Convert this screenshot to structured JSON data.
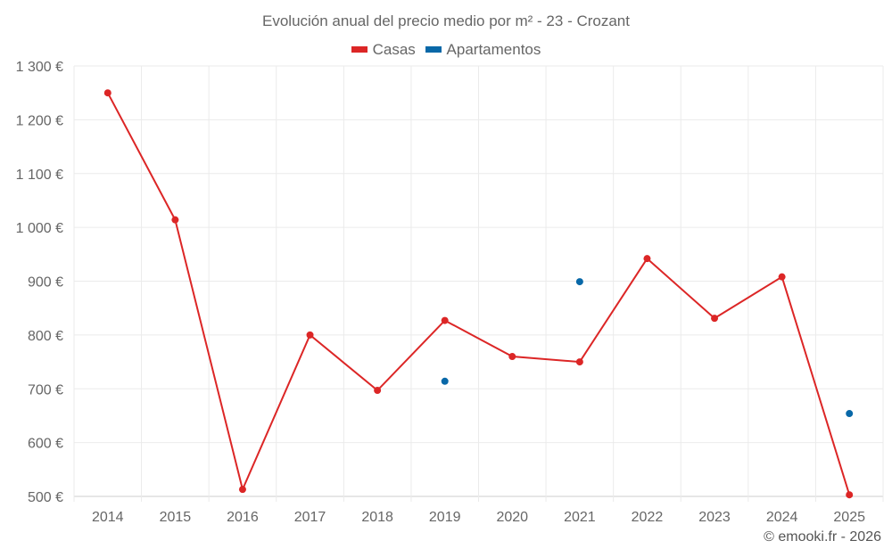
{
  "chart_data": {
    "type": "line",
    "title": "Evolución anual del precio medio por m² - 23 - Crozant",
    "categories": [
      "2014",
      "2015",
      "2016",
      "2017",
      "2018",
      "2019",
      "2020",
      "2021",
      "2022",
      "2023",
      "2024",
      "2025"
    ],
    "series": [
      {
        "name": "Casas",
        "color": "#dc2626",
        "values": [
          1250,
          1014,
          513,
          800,
          697,
          827,
          760,
          750,
          942,
          831,
          908,
          503
        ]
      },
      {
        "name": "Apartamentos",
        "color": "#0868a8",
        "values": [
          null,
          null,
          null,
          null,
          null,
          714,
          null,
          899,
          null,
          null,
          null,
          654
        ]
      }
    ],
    "yticks": [
      500,
      600,
      700,
      800,
      900,
      1000,
      1100,
      1200,
      1300
    ],
    "ytick_labels": [
      "500 €",
      "600 €",
      "700 €",
      "800 €",
      "900 €",
      "1 000 €",
      "1 100 €",
      "1 200 €",
      "1 300 €"
    ],
    "ylim": [
      500,
      1300
    ],
    "grid": true,
    "legend_position": "top-center"
  },
  "credit": "© emooki.fr - 2026"
}
